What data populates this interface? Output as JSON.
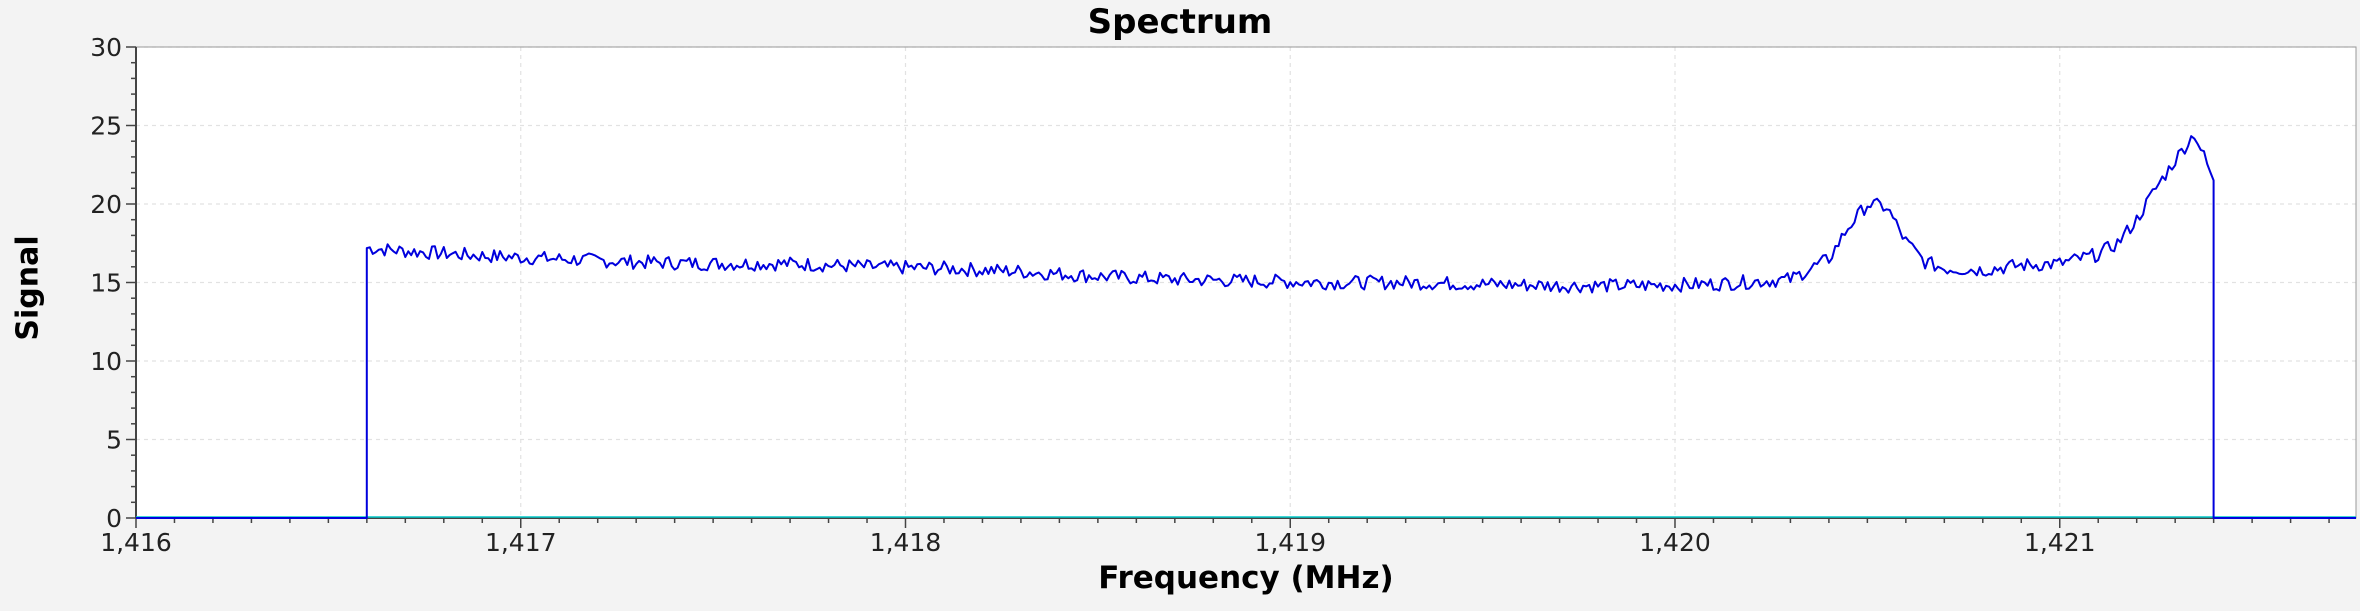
{
  "chart_data": {
    "type": "line",
    "title": "Spectrum",
    "xlabel": "Frequency (MHz)",
    "ylabel": "Signal",
    "xlim": [
      1416.0,
      1421.77
    ],
    "ylim": [
      0,
      30
    ],
    "x_ticks": [
      1416,
      1417,
      1418,
      1419,
      1420,
      1421
    ],
    "x_tick_labels": [
      "1,416",
      "1,417",
      "1,418",
      "1,419",
      "1,420",
      "1,421"
    ],
    "y_ticks": [
      0,
      5,
      10,
      15,
      20,
      25,
      30
    ],
    "y_tick_labels": [
      "0",
      "5",
      "10",
      "15",
      "20",
      "25",
      "30"
    ],
    "grid": true,
    "line_color": "#0000dd",
    "baseline_color": "#00c8c8",
    "series": [
      {
        "x": [
          1416.0,
          1416.6,
          1416.6,
          1416.7,
          1416.9,
          1417.1,
          1417.3,
          1417.5,
          1417.7,
          1417.9,
          1418.1,
          1418.3,
          1418.5,
          1418.7,
          1418.9,
          1419.1,
          1419.3,
          1419.5,
          1419.7,
          1419.9,
          1420.1,
          1420.3,
          1420.4,
          1420.45,
          1420.5,
          1420.55,
          1420.6,
          1420.65,
          1420.7,
          1420.8,
          1420.9,
          1421.0,
          1421.1,
          1421.15,
          1421.2,
          1421.25,
          1421.3,
          1421.35,
          1421.4,
          1421.4,
          1421.77
        ],
        "y": [
          0,
          0,
          17.2,
          17.0,
          16.7,
          16.5,
          16.3,
          16.2,
          16.2,
          16.0,
          15.9,
          15.7,
          15.4,
          15.2,
          15.1,
          15.0,
          15.0,
          14.9,
          14.8,
          14.8,
          14.9,
          15.2,
          16.5,
          18.5,
          20.0,
          19.8,
          17.6,
          16.3,
          15.9,
          15.8,
          16.1,
          16.2,
          16.8,
          17.5,
          19.0,
          21.0,
          22.8,
          24.5,
          21.5,
          0,
          0
        ]
      }
    ]
  }
}
